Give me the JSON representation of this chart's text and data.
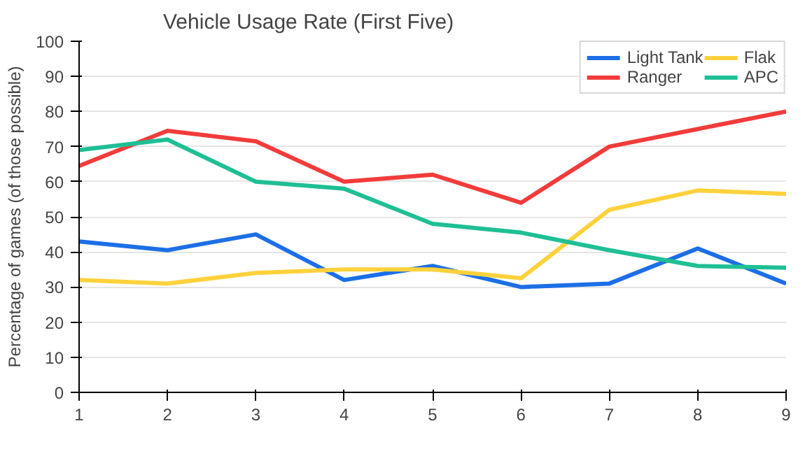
{
  "chart_data": {
    "type": "line",
    "title": "Vehicle Usage Rate (First Five)",
    "ylabel": "Percentage of games (of those possible)",
    "x": [
      1,
      2,
      3,
      4,
      5,
      6,
      7,
      8,
      9
    ],
    "xlim": [
      1,
      9
    ],
    "xticks": [
      1,
      2,
      3,
      4,
      5,
      6,
      7,
      8,
      9
    ],
    "ylim": [
      0,
      100
    ],
    "yticks": [
      0,
      10,
      20,
      30,
      40,
      50,
      60,
      70,
      80,
      90,
      100
    ],
    "grid": "y",
    "legend": "top right",
    "marker": "none",
    "line_style": "solid",
    "series": [
      {
        "name": "Light Tank",
        "color": "#1c6fe6",
        "values": [
          43,
          40.5,
          45,
          32,
          36,
          30,
          31,
          41,
          31
        ]
      },
      {
        "name": "Ranger",
        "color": "#f23b3b",
        "values": [
          64.5,
          74.5,
          71.5,
          60,
          62,
          54,
          70,
          75,
          80
        ]
      },
      {
        "name": "Flak",
        "color": "#ffd23c",
        "values": [
          32,
          31,
          34,
          35,
          35,
          32.5,
          52,
          57.5,
          56.5
        ]
      },
      {
        "name": "APC",
        "color": "#1fbf95",
        "values": [
          69,
          72,
          60,
          58,
          48,
          45.5,
          40.5,
          36,
          35.5
        ]
      }
    ]
  }
}
